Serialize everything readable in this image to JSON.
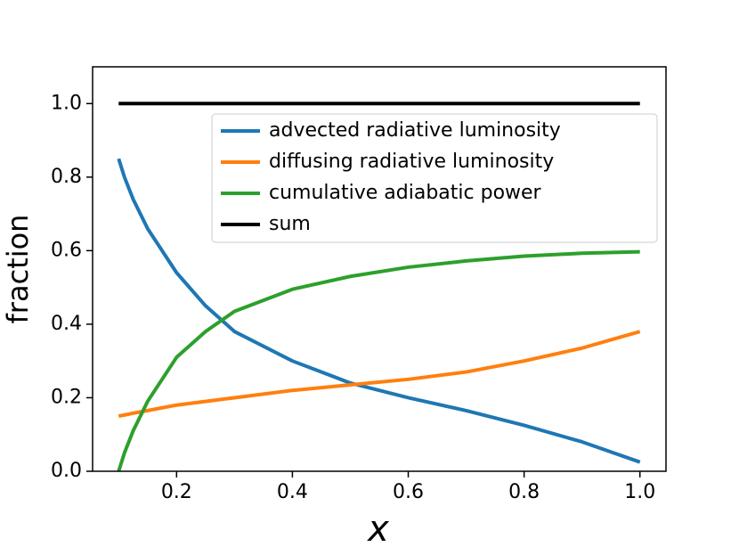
{
  "chart_data": {
    "type": "line",
    "x_label": "x",
    "y_label": "fraction",
    "x": [
      0.1,
      0.11,
      0.125,
      0.15,
      0.2,
      0.25,
      0.3,
      0.4,
      0.5,
      0.6,
      0.7,
      0.8,
      0.9,
      1.0
    ],
    "series": [
      {
        "name": "advected radiative luminosity",
        "color": "#1f77b4",
        "values": [
          0.85,
          0.8,
          0.74,
          0.66,
          0.54,
          0.45,
          0.38,
          0.3,
          0.24,
          0.2,
          0.165,
          0.125,
          0.08,
          0.025
        ]
      },
      {
        "name": "diffusing radiative luminosity",
        "color": "#ff7f0e",
        "values": [
          0.15,
          0.153,
          0.158,
          0.165,
          0.18,
          0.19,
          0.2,
          0.22,
          0.235,
          0.25,
          0.27,
          0.3,
          0.335,
          0.38
        ]
      },
      {
        "name": "cumulative adiabatic power",
        "color": "#2ca02c",
        "values": [
          0.0,
          0.05,
          0.11,
          0.19,
          0.31,
          0.38,
          0.435,
          0.495,
          0.53,
          0.555,
          0.572,
          0.585,
          0.593,
          0.597
        ]
      },
      {
        "name": "sum",
        "color": "#000000",
        "values": [
          1.0,
          1.0,
          1.0,
          1.0,
          1.0,
          1.0,
          1.0,
          1.0,
          1.0,
          1.0,
          1.0,
          1.0,
          1.0,
          1.0
        ]
      }
    ],
    "xlim": [
      0.055,
      1.045
    ],
    "ylim": [
      0,
      1.1
    ],
    "xticks": [
      0.2,
      0.4,
      0.6,
      0.8,
      {
        "value": 1.0,
        "label": "1.0"
      }
    ],
    "yticks": [
      {
        "value": 0,
        "label": "0.0"
      },
      0.2,
      0.4,
      0.6,
      0.8,
      {
        "value": 1.0,
        "label": "1.0"
      }
    ],
    "legend": "upper right"
  }
}
